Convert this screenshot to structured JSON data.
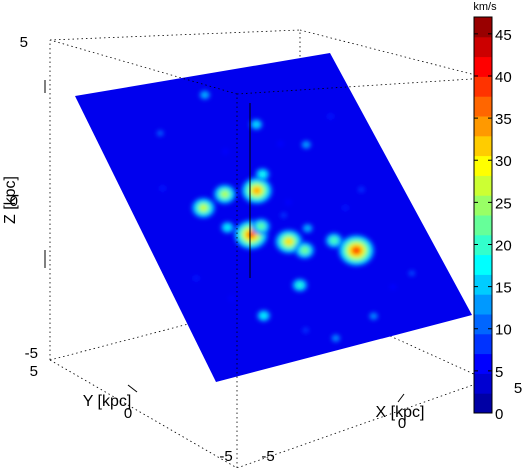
{
  "chart_data": {
    "type": "heatmap",
    "xlabel": "X [kpc]",
    "ylabel": "Y [kpc]",
    "zlabel": "Z [kpc]",
    "xlim": [
      -5,
      5
    ],
    "ylim": [
      -5,
      5
    ],
    "zlim": [
      -5,
      5
    ],
    "x_ticks": [
      "-5",
      "0",
      "5"
    ],
    "y_ticks": [
      "-5",
      "0",
      "5"
    ],
    "z_ticks": [
      "-5",
      "0",
      "5"
    ],
    "colorbar": {
      "unit": "km/s",
      "min": 0,
      "max": 47,
      "ticks": [
        "0",
        "5",
        "10",
        "15",
        "20",
        "25",
        "30",
        "35",
        "40",
        "45"
      ],
      "colormap": "jet"
    },
    "colormap_stops": [
      "#00008f",
      "#0000ff",
      "#0080ff",
      "#00ffff",
      "#80ff80",
      "#ffff00",
      "#ff8000",
      "#ff0000",
      "#800000"
    ],
    "field_background": 0,
    "features": [
      {
        "x": -0.3,
        "y": 4.3,
        "v": 14
      },
      {
        "x": -2.6,
        "y": 3.3,
        "v": 10
      },
      {
        "x": 1.0,
        "y": 3.0,
        "v": 16
      },
      {
        "x": 2.4,
        "y": 2.0,
        "v": 13
      },
      {
        "x": -2.4,
        "y": 0.6,
        "v": 27
      },
      {
        "x": -1.4,
        "y": 0.9,
        "v": 26
      },
      {
        "x": -0.2,
        "y": 0.8,
        "v": 34
      },
      {
        "x": 0.3,
        "y": 1.3,
        "v": 18
      },
      {
        "x": -1.9,
        "y": -0.2,
        "v": 17
      },
      {
        "x": -1.2,
        "y": -0.6,
        "v": 37
      },
      {
        "x": -0.7,
        "y": -0.4,
        "v": 22
      },
      {
        "x": 0.3,
        "y": -0.2,
        "v": 8
      },
      {
        "x": 0.9,
        "y": -0.8,
        "v": 14
      },
      {
        "x": 0.0,
        "y": -1.1,
        "v": 31
      },
      {
        "x": 0.4,
        "y": -1.5,
        "v": 23
      },
      {
        "x": 1.6,
        "y": -1.4,
        "v": 21
      },
      {
        "x": 2.2,
        "y": -1.9,
        "v": 39
      },
      {
        "x": -0.4,
        "y": -2.6,
        "v": 19
      },
      {
        "x": -2.2,
        "y": -3.3,
        "v": 17
      },
      {
        "x": -1.0,
        "y": -4.1,
        "v": 8
      },
      {
        "x": -0.1,
        "y": -4.6,
        "v": 12
      },
      {
        "x": 1.6,
        "y": -4.2,
        "v": 12
      },
      {
        "x": 3.7,
        "y": -3.1,
        "v": 9
      },
      {
        "x": 3.5,
        "y": 0.1,
        "v": 8
      },
      {
        "x": 3.8,
        "y": 2.8,
        "v": 7
      },
      {
        "x": -3.5,
        "y": 1.5,
        "v": 7
      },
      {
        "x": -3.9,
        "y": -1.6,
        "v": 7
      },
      {
        "x": 1.5,
        "y": 2.2,
        "v": 6
      },
      {
        "x": -3.0,
        "y": -2.5,
        "v": 6
      },
      {
        "x": 2.8,
        "y": -3.4,
        "v": 6
      },
      {
        "x": 0.7,
        "y": 0.2,
        "v": 6
      },
      {
        "x": -0.6,
        "y": 2.3,
        "v": 6
      },
      {
        "x": 2.6,
        "y": -0.4,
        "v": 7
      }
    ]
  }
}
